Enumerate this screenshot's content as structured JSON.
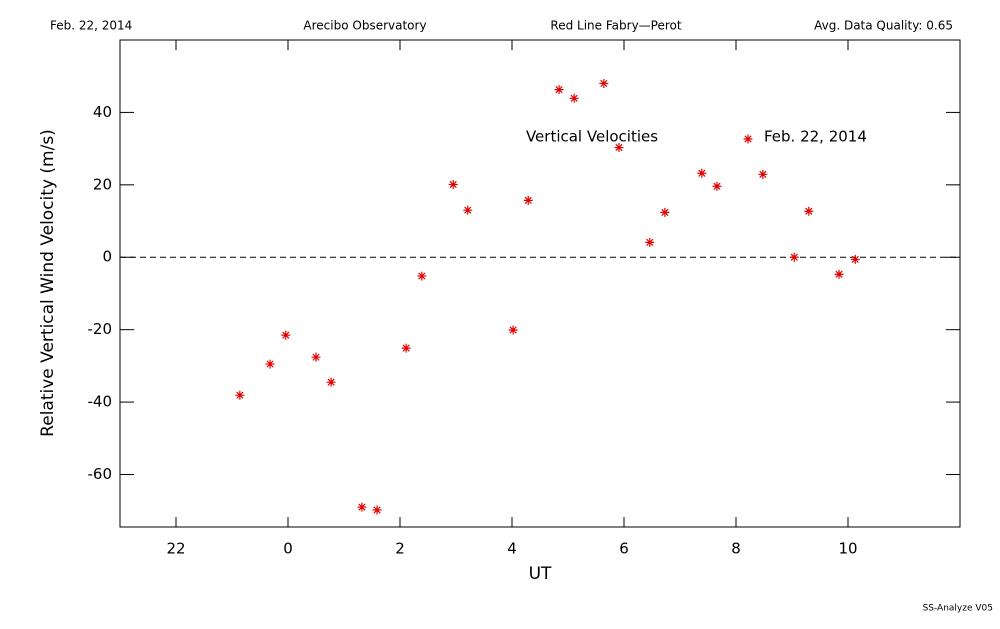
{
  "chart_data": {
    "type": "scatter",
    "header": [
      "Feb. 22, 2014",
      "Arecibo Observatory",
      "Red Line Fabry—Perot",
      "Avg. Data Quality: 0.65"
    ],
    "x_label": "UT",
    "y_label": "Relative Vertical Wind Velocity (m/s)",
    "annotation": "Vertical Velocities",
    "footer": "SS-Analyze V05",
    "xlim": [
      -3,
      12
    ],
    "xticks": [
      {
        "value": -2,
        "label": "22"
      },
      0,
      2,
      4,
      6,
      8,
      10
    ],
    "ylim": [
      -74.5,
      60
    ],
    "yticks": [
      -60,
      -40,
      -20,
      0,
      20,
      40
    ],
    "reference_line": 0,
    "series": [
      {
        "name": "Feb. 22, 2014",
        "color": "#e00000",
        "x": [
          -0.86,
          -0.32,
          -0.04,
          0.5,
          0.77,
          1.32,
          1.59,
          2.11,
          2.39,
          2.95,
          3.21,
          4.02,
          4.29,
          4.84,
          5.11,
          5.64,
          5.91,
          6.46,
          6.73,
          7.39,
          7.66,
          8.48,
          9.04,
          9.3,
          9.84,
          10.13
        ],
        "values": [
          -38.1,
          -29.5,
          -21.5,
          -27.6,
          -34.5,
          -69.0,
          -69.8,
          -25.1,
          -5.2,
          20.1,
          13.0,
          -20.1,
          15.7,
          46.3,
          43.9,
          48.0,
          30.3,
          4.1,
          12.4,
          23.2,
          19.6,
          22.9,
          0,
          12.7,
          -4.7,
          -0.6
        ]
      }
    ]
  }
}
